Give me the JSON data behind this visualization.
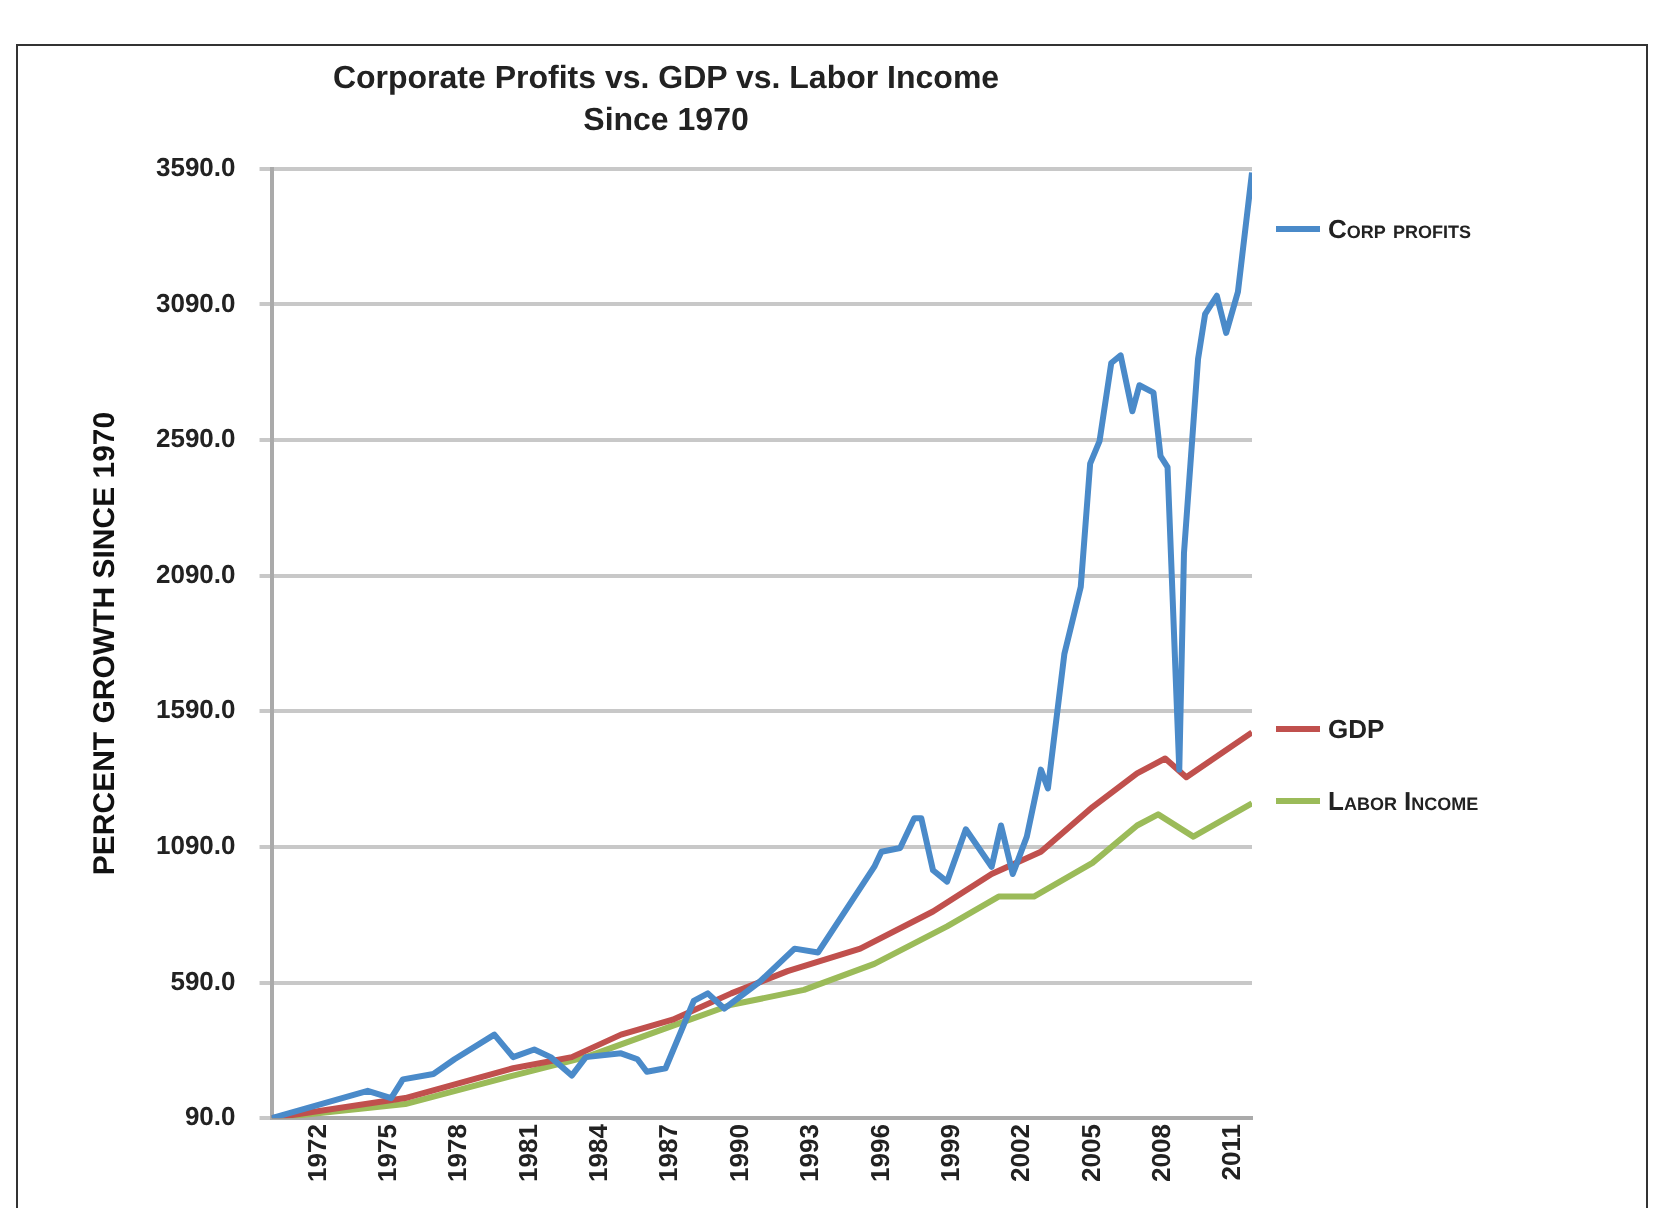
{
  "chart_data": {
    "type": "line",
    "title": "Corporate Profits vs. GDP vs. Labor Income",
    "subtitle": "Since 1970",
    "ylabel": "PERCENT GROWTH SINCE 1970",
    "xlim": [
      1970,
      2011.8
    ],
    "xticks": [
      1972,
      1975,
      1978,
      1981,
      1984,
      1987,
      1990,
      1993,
      1996,
      1999,
      2002,
      2005,
      2008,
      2011
    ],
    "ylim": [
      90,
      3590
    ],
    "yticks": [
      {
        "value": 90,
        "label": "90.0"
      },
      {
        "value": 590,
        "label": "590.0"
      },
      {
        "value": 1090,
        "label": "1090.0"
      },
      {
        "value": 1590,
        "label": "1590.0"
      },
      {
        "value": 2090,
        "label": "2090.0"
      },
      {
        "value": 2590,
        "label": "2590.0"
      },
      {
        "value": 3090,
        "label": "3090.0"
      },
      {
        "value": 3590,
        "label": "3590.0"
      }
    ],
    "grid": "y",
    "legend": "right",
    "marker": "none",
    "line_style": "solid",
    "series": [
      {
        "name": "Corp profits",
        "color": "#4a8ac9",
        "x": [
          1970,
          1974.1,
          1975.1,
          1975.6,
          1976.9,
          1977.8,
          1979.5,
          1980.3,
          1981.2,
          1981.9,
          1982.8,
          1983.4,
          1984.9,
          1985.6,
          1986,
          1986.8,
          1988,
          1988.6,
          1989.3,
          1990.8,
          1992.3,
          1993.3,
          1995.7,
          1996,
          1996.8,
          1997.4,
          1997.7,
          1998.2,
          1998.8,
          1999.6,
          2000.7,
          2001.1,
          2001.6,
          2002.2,
          2002.8,
          2003.1,
          2003.8,
          2004.5,
          2004.9,
          2005.3,
          2005.8,
          2006.2,
          2006.7,
          2007,
          2007.6,
          2007.9,
          2008.2,
          2008.7,
          2008.9,
          2009.5,
          2009.8,
          2010.3,
          2010.7,
          2011.2,
          2011.8
        ],
        "values": [
          90,
          191,
          164,
          233,
          253,
          307,
          398,
          315,
          343,
          315,
          247,
          315,
          329,
          307,
          261,
          274,
          522,
          550,
          494,
          592,
          715,
          701,
          1017,
          1072,
          1086,
          1196,
          1196,
          1004,
          962,
          1155,
          1017,
          1169,
          990,
          1128,
          1375,
          1306,
          1801,
          2049,
          2503,
          2586,
          2874,
          2902,
          2696,
          2792,
          2765,
          2531,
          2490,
          1375,
          2173,
          2889,
          3054,
          3122,
          2985,
          3136,
          3576
        ]
      },
      {
        "name": "GDP",
        "color": "#c0504d",
        "x": [
          1970,
          1975.7,
          1980.3,
          1982.8,
          1984.9,
          1987.1,
          1989.6,
          1992,
          1995.1,
          1998.2,
          2000.7,
          2002.8,
          2005,
          2006.9,
          2008.1,
          2009,
          2011.8
        ],
        "values": [
          90,
          164,
          274,
          315,
          398,
          453,
          550,
          632,
          715,
          852,
          990,
          1072,
          1237,
          1361,
          1416,
          1347,
          1512
        ]
      },
      {
        "name": "Labor Income",
        "color": "#9bbb59",
        "x": [
          1970,
          1975.7,
          1980.3,
          1983.4,
          1986.5,
          1989.6,
          1992.7,
          1995.7,
          1998.8,
          2001,
          2002.5,
          2005,
          2006.9,
          2007.8,
          2009.3,
          2011.8
        ],
        "values": [
          90,
          142,
          247,
          315,
          412,
          508,
          563,
          659,
          797,
          907,
          907,
          1031,
          1169,
          1210,
          1128,
          1251
        ]
      }
    ]
  }
}
